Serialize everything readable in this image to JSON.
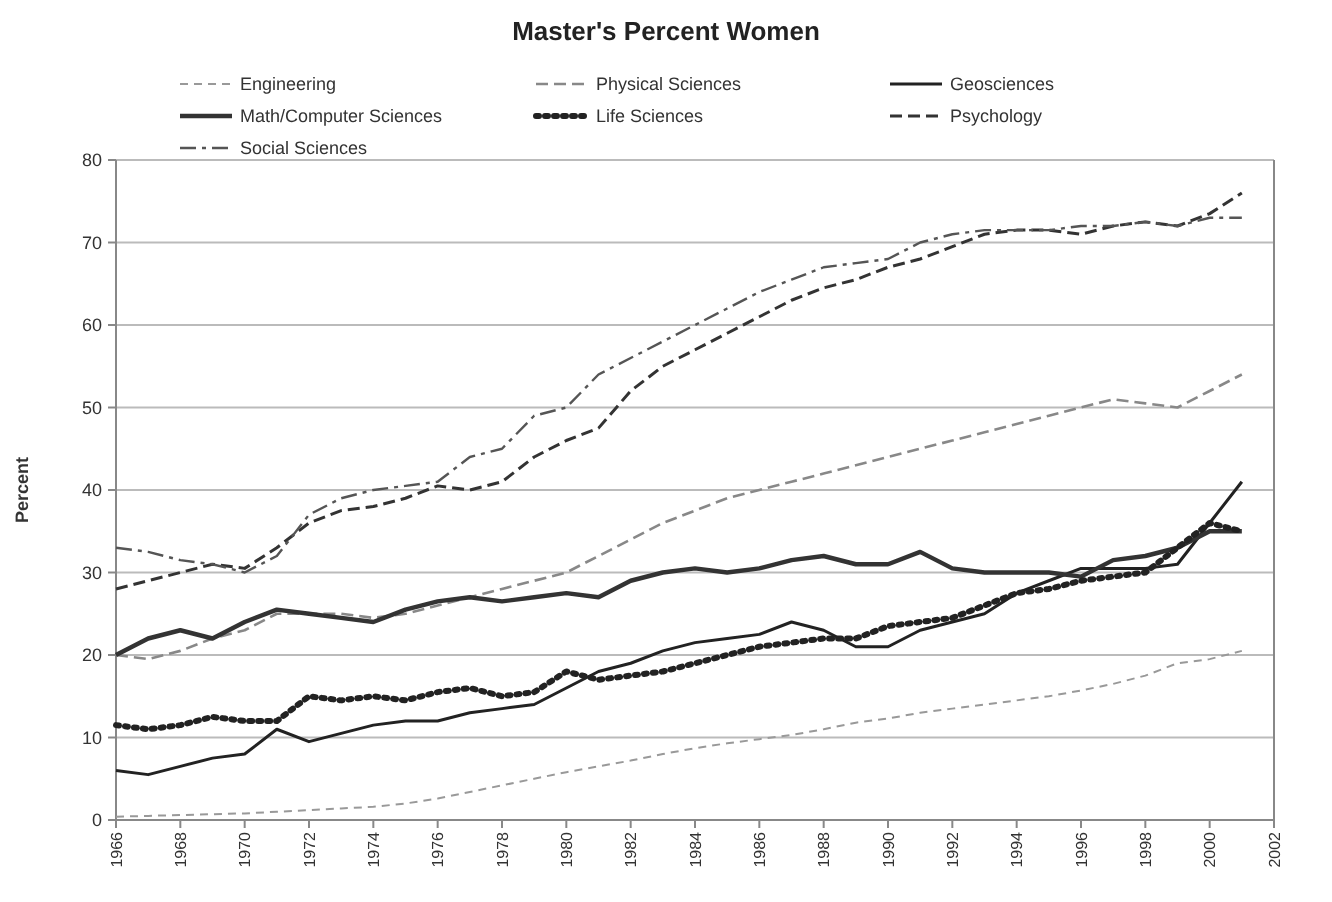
{
  "chart_data": {
    "type": "line",
    "title": "Master's Percent Women",
    "ylabel": "Percent",
    "x": [
      1966,
      1967,
      1968,
      1969,
      1970,
      1971,
      1972,
      1973,
      1974,
      1975,
      1976,
      1977,
      1978,
      1979,
      1980,
      1981,
      1982,
      1983,
      1984,
      1985,
      1986,
      1987,
      1988,
      1989,
      1990,
      1991,
      1992,
      1993,
      1994,
      1995,
      1996,
      1997,
      1998,
      1999,
      2000,
      2001
    ],
    "xlim": [
      1966,
      2002
    ],
    "xticks": [
      1966,
      1968,
      1970,
      1972,
      1974,
      1976,
      1978,
      1980,
      1982,
      1984,
      1986,
      1988,
      1990,
      1992,
      1994,
      1996,
      1998,
      2000,
      2002
    ],
    "ylim": [
      0,
      80
    ],
    "yticks": [
      0,
      10,
      20,
      30,
      40,
      50,
      60,
      70,
      80
    ],
    "grid": "y",
    "legend": "top",
    "series": [
      {
        "name": "Engineering",
        "color": "#999999",
        "line_style": "dashed",
        "values": [
          0.4,
          0.5,
          0.6,
          0.7,
          0.8,
          1.0,
          1.2,
          1.4,
          1.6,
          2.0,
          2.6,
          3.4,
          4.2,
          5.0,
          5.8,
          6.5,
          7.2,
          8.0,
          8.7,
          9.3,
          9.8,
          10.3,
          11,
          11.8,
          12.3,
          13,
          13.5,
          14,
          14.5,
          15,
          15.7,
          16.5,
          17.5,
          19,
          19.5,
          20.5
        ]
      },
      {
        "name": "Physical Sciences",
        "color": "#888888",
        "line_style": "dashed",
        "values": [
          20,
          19.5,
          20.5,
          22,
          23,
          25,
          25,
          25,
          24.5,
          25,
          26,
          27,
          28,
          29,
          30,
          32,
          34,
          36,
          37.5,
          39,
          40,
          41,
          42,
          43,
          44,
          45,
          46,
          47,
          48,
          49,
          50,
          51,
          50.5,
          50,
          52,
          54
        ]
      },
      {
        "name": "Geosciences",
        "color": "#222222",
        "line_style": "solid",
        "values": [
          6,
          5.5,
          6.5,
          7.5,
          8,
          11,
          9.5,
          10.5,
          11.5,
          12,
          12,
          13,
          13.5,
          14,
          16,
          18,
          19,
          20.5,
          21.5,
          22,
          22.5,
          24,
          23,
          21,
          21,
          23,
          24,
          25,
          27.5,
          29,
          30.5,
          30.5,
          30.5,
          31,
          36,
          41
        ]
      },
      {
        "name": "Math/Computer Sciences",
        "color": "#333333",
        "line_style": "solid",
        "values": [
          20,
          22,
          23,
          22,
          24,
          25.5,
          25,
          24.5,
          24,
          25.5,
          26.5,
          27,
          26.5,
          27,
          27.5,
          27,
          29,
          30,
          30.5,
          30,
          30.5,
          31.5,
          32,
          31,
          31,
          32.5,
          30.5,
          30,
          30,
          30,
          29.5,
          31.5,
          32,
          33,
          35,
          35
        ]
      },
      {
        "name": "Life Sciences",
        "color": "#222222",
        "line_style": "dotted",
        "values": [
          11.5,
          11,
          11.5,
          12.5,
          12,
          12,
          15,
          14.5,
          15,
          14.5,
          15.5,
          16,
          15,
          15.5,
          18,
          17,
          17.5,
          18,
          19,
          20,
          21,
          21.5,
          22,
          22,
          23.5,
          24,
          24.5,
          26,
          27.5,
          28,
          29,
          29.5,
          30,
          33,
          36,
          35
        ]
      },
      {
        "name": "Psychology",
        "color": "#333333",
        "line_style": "dashed",
        "values": [
          28,
          29,
          30,
          31,
          30.5,
          33,
          36,
          37.5,
          38,
          39,
          40.5,
          40,
          41,
          44,
          46,
          47.5,
          52,
          55,
          57,
          59,
          61,
          63,
          64.5,
          65.5,
          67,
          68,
          69.5,
          71,
          71.5,
          71.5,
          71,
          72,
          72.5,
          72,
          73.5,
          76
        ]
      },
      {
        "name": "Social Sciences",
        "color": "#555555",
        "line_style": "dashed",
        "values": [
          33,
          32.5,
          31.5,
          31,
          30,
          32,
          37,
          39,
          40,
          40.5,
          41,
          44,
          45,
          49,
          50,
          54,
          56,
          58,
          60,
          62,
          64,
          65.5,
          67,
          67.5,
          68,
          70,
          71,
          71.5,
          71.5,
          71.5,
          72,
          72,
          72.5,
          72,
          73,
          73
        ]
      }
    ]
  }
}
